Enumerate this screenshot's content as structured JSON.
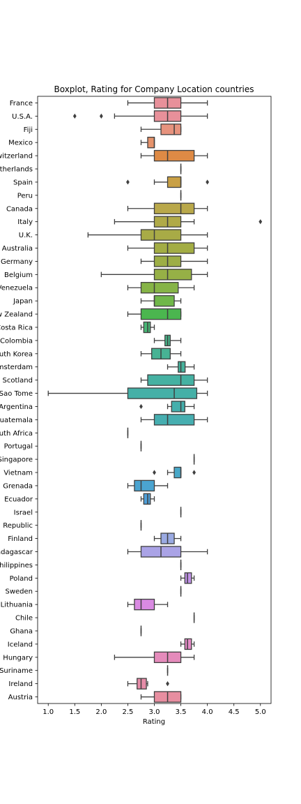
{
  "chart_data": {
    "type": "boxplot",
    "orientation": "horizontal",
    "title": "Boxplot, Rating for Company Location countries",
    "xlabel": "Rating",
    "ylabel": "",
    "xlim": [
      0.8,
      5.2
    ],
    "xticks": [
      "1.0",
      "1.5",
      "2.0",
      "2.5",
      "3.0",
      "3.5",
      "4.0",
      "4.5",
      "5.0"
    ],
    "grid": false,
    "categories": [
      "France",
      "U.S.A.",
      "Fiji",
      "Mexico",
      "Switzerland",
      "Netherlands",
      "Spain",
      "Peru",
      "Canada",
      "Italy",
      "U.K.",
      "Australia",
      "Germany",
      "Belgium",
      "Venezuela",
      "Japan",
      "New Zealand",
      "Costa Rica",
      "Colombia",
      "South Korea",
      "Amsterdam",
      "Scotland",
      "Sao Tome",
      "Argentina",
      "Guatemala",
      "South Africa",
      "Portugal",
      "Singapore",
      "Vietnam",
      "Grenada",
      "Ecuador",
      "Israel",
      "Republic",
      "Finland",
      "Madagascar",
      "Philippines",
      "Poland",
      "Sweden",
      "Lithuania",
      "Chile",
      "Ghana",
      "Iceland",
      "Hungary",
      "Suriname",
      "Ireland",
      "Austria"
    ],
    "boxes": [
      {
        "color": "#e8909a",
        "whislo": 2.5,
        "q1": 3.0,
        "med": 3.25,
        "q3": 3.5,
        "whishi": 4.0,
        "fliers": []
      },
      {
        "color": "#e8909a",
        "whislo": 2.25,
        "q1": 3.0,
        "med": 3.25,
        "q3": 3.5,
        "whishi": 4.0,
        "fliers": [
          1.5,
          2.0
        ]
      },
      {
        "color": "#e7937e",
        "whislo": 2.75,
        "q1": 3.125,
        "med": 3.375,
        "q3": 3.5,
        "whishi": 3.5,
        "fliers": []
      },
      {
        "color": "#e6936c",
        "whislo": 2.75,
        "q1": 2.875,
        "med": 3.0,
        "q3": 3.0,
        "whishi": 3.0,
        "fliers": []
      },
      {
        "color": "#de8a45",
        "whislo": 2.75,
        "q1": 3.0,
        "med": 3.25,
        "q3": 3.75,
        "whishi": 4.0,
        "fliers": []
      },
      {
        "color": "#d8994a",
        "whislo": 3.5,
        "q1": 3.5,
        "med": 3.5,
        "q3": 3.5,
        "whishi": 3.5,
        "fliers": []
      },
      {
        "color": "#c9a045",
        "whislo": 3.0,
        "q1": 3.25,
        "med": 3.5,
        "q3": 3.5,
        "whishi": 3.5,
        "fliers": [
          2.5,
          4.0
        ]
      },
      {
        "color": "#c1a545",
        "whislo": 3.5,
        "q1": 3.5,
        "med": 3.5,
        "q3": 3.5,
        "whishi": 3.5,
        "fliers": []
      },
      {
        "color": "#b9a84a",
        "whislo": 2.5,
        "q1": 3.0,
        "med": 3.5,
        "q3": 3.75,
        "whishi": 4.0,
        "fliers": []
      },
      {
        "color": "#b0aa48",
        "whislo": 2.25,
        "q1": 3.0,
        "med": 3.25,
        "q3": 3.5,
        "whishi": 3.75,
        "fliers": [
          5.0
        ]
      },
      {
        "color": "#a8ab46",
        "whislo": 1.75,
        "q1": 2.75,
        "med": 3.0,
        "q3": 3.5,
        "whishi": 4.0,
        "fliers": []
      },
      {
        "color": "#a3ad44",
        "whislo": 2.5,
        "q1": 3.0,
        "med": 3.25,
        "q3": 3.75,
        "whishi": 4.0,
        "fliers": []
      },
      {
        "color": "#9dae45",
        "whislo": 2.75,
        "q1": 3.0,
        "med": 3.25,
        "q3": 3.5,
        "whishi": 4.0,
        "fliers": []
      },
      {
        "color": "#96b046",
        "whislo": 2.0,
        "q1": 3.0,
        "med": 3.25,
        "q3": 3.7,
        "whishi": 4.0,
        "fliers": []
      },
      {
        "color": "#86b447",
        "whislo": 2.5,
        "q1": 2.75,
        "med": 3.0,
        "q3": 3.45,
        "whishi": 3.75,
        "fliers": []
      },
      {
        "color": "#70b74a",
        "whislo": 2.75,
        "q1": 3.0,
        "med": 3.0,
        "q3": 3.375,
        "whishi": 3.5,
        "fliers": []
      },
      {
        "color": "#4bb64f",
        "whislo": 2.5,
        "q1": 2.75,
        "med": 3.25,
        "q3": 3.5,
        "whishi": 3.5,
        "fliers": []
      },
      {
        "color": "#48b574",
        "whislo": 2.75,
        "q1": 2.8,
        "med": 2.875,
        "q3": 2.925,
        "whishi": 3.0,
        "fliers": []
      },
      {
        "color": "#47b489",
        "whislo": 3.0,
        "q1": 3.2,
        "med": 3.25,
        "q3": 3.3,
        "whishi": 3.5,
        "fliers": []
      },
      {
        "color": "#47b394",
        "whislo": 2.75,
        "q1": 2.95,
        "med": 3.125,
        "q3": 3.3,
        "whishi": 3.5,
        "fliers": []
      },
      {
        "color": "#46b29c",
        "whislo": 3.25,
        "q1": 3.45,
        "med": 3.5,
        "q3": 3.58,
        "whishi": 3.75,
        "fliers": []
      },
      {
        "color": "#45b1a2",
        "whislo": 2.75,
        "q1": 2.875,
        "med": 3.5,
        "q3": 3.75,
        "whishi": 4.0,
        "fliers": []
      },
      {
        "color": "#45b0a7",
        "whislo": 1.0,
        "q1": 2.5,
        "med": 3.375,
        "q3": 3.8,
        "whishi": 4.0,
        "fliers": []
      },
      {
        "color": "#45afac",
        "whislo": 3.25,
        "q1": 3.325,
        "med": 3.5,
        "q3": 3.575,
        "whishi": 3.75,
        "fliers": [
          2.75
        ]
      },
      {
        "color": "#46aeb0",
        "whislo": 2.75,
        "q1": 3.0,
        "med": 3.25,
        "q3": 3.75,
        "whishi": 4.0,
        "fliers": []
      },
      {
        "color": "#46adb5",
        "whislo": 2.5,
        "q1": 2.5,
        "med": 2.5,
        "q3": 2.5,
        "whishi": 2.5,
        "fliers": []
      },
      {
        "color": "#47acba",
        "whislo": 2.75,
        "q1": 2.75,
        "med": 2.75,
        "q3": 2.75,
        "whishi": 2.75,
        "fliers": []
      },
      {
        "color": "#48aac0",
        "whislo": 3.75,
        "q1": 3.75,
        "med": 3.75,
        "q3": 3.75,
        "whishi": 3.75,
        "fliers": []
      },
      {
        "color": "#49a8c8",
        "whislo": 3.25,
        "q1": 3.375,
        "med": 3.5,
        "q3": 3.5,
        "whishi": 3.5,
        "fliers": [
          3.0,
          3.75
        ]
      },
      {
        "color": "#4ba4d0",
        "whislo": 2.5,
        "q1": 2.625,
        "med": 2.75,
        "q3": 3.0,
        "whishi": 3.25,
        "fliers": []
      },
      {
        "color": "#4f9fd8",
        "whislo": 2.75,
        "q1": 2.8,
        "med": 2.875,
        "q3": 2.925,
        "whishi": 3.0,
        "fliers": []
      },
      {
        "color": "#6fa6dc",
        "whislo": 3.5,
        "q1": 3.5,
        "med": 3.5,
        "q3": 3.5,
        "whishi": 3.5,
        "fliers": []
      },
      {
        "color": "#8eaadf",
        "whislo": 2.75,
        "q1": 2.75,
        "med": 2.75,
        "q3": 2.75,
        "whishi": 2.75,
        "fliers": []
      },
      {
        "color": "#9aaae2",
        "whislo": 3.0,
        "q1": 3.125,
        "med": 3.25,
        "q3": 3.375,
        "whishi": 3.5,
        "fliers": []
      },
      {
        "color": "#aaa3e6",
        "whislo": 2.5,
        "q1": 2.75,
        "med": 3.125,
        "q3": 3.5,
        "whishi": 4.0,
        "fliers": []
      },
      {
        "color": "#b69de8",
        "whislo": 3.5,
        "q1": 3.5,
        "med": 3.5,
        "q3": 3.5,
        "whishi": 3.5,
        "fliers": []
      },
      {
        "color": "#c092e6",
        "whislo": 3.5,
        "q1": 3.575,
        "med": 3.625,
        "q3": 3.7,
        "whishi": 3.75,
        "fliers": []
      },
      {
        "color": "#c88de3",
        "whislo": 3.5,
        "q1": 3.5,
        "med": 3.5,
        "q3": 3.5,
        "whishi": 3.5,
        "fliers": []
      },
      {
        "color": "#d98ae2",
        "whislo": 2.5,
        "q1": 2.625,
        "med": 2.75,
        "q3": 3.0,
        "whishi": 3.25,
        "fliers": []
      },
      {
        "color": "#e088d8",
        "whislo": 3.75,
        "q1": 3.75,
        "med": 3.75,
        "q3": 3.75,
        "whishi": 3.75,
        "fliers": []
      },
      {
        "color": "#e389cf",
        "whislo": 2.75,
        "q1": 2.75,
        "med": 2.75,
        "q3": 2.75,
        "whishi": 2.75,
        "fliers": []
      },
      {
        "color": "#e48ac6",
        "whislo": 3.5,
        "q1": 3.575,
        "med": 3.625,
        "q3": 3.7,
        "whishi": 3.75,
        "fliers": []
      },
      {
        "color": "#e58bbb",
        "whislo": 2.25,
        "q1": 3.0,
        "med": 3.25,
        "q3": 3.5,
        "whishi": 3.75,
        "fliers": []
      },
      {
        "color": "#e68cb2",
        "whislo": 3.25,
        "q1": 3.25,
        "med": 3.25,
        "q3": 3.25,
        "whishi": 3.25,
        "fliers": []
      },
      {
        "color": "#e68ca8",
        "whislo": 2.5,
        "q1": 2.675,
        "med": 2.75,
        "q3": 2.85,
        "whishi": 2.875,
        "fliers": [
          3.25
        ]
      },
      {
        "color": "#e78ea0",
        "whislo": 2.75,
        "q1": 3.0,
        "med": 3.25,
        "q3": 3.5,
        "whishi": 3.5,
        "fliers": []
      }
    ]
  }
}
